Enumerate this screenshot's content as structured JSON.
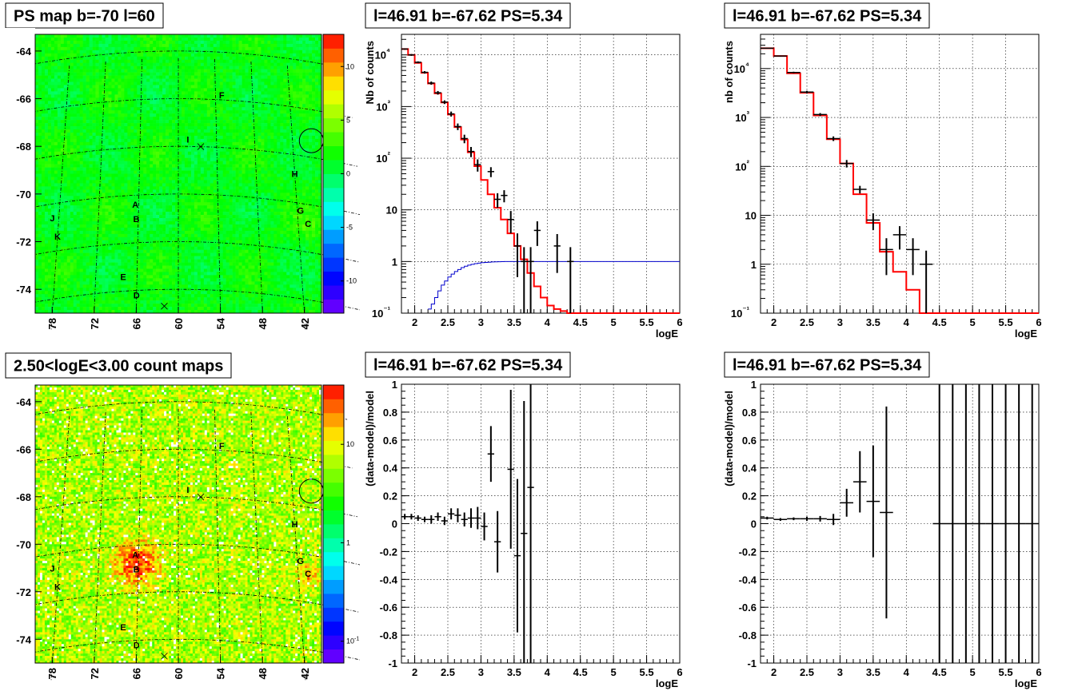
{
  "panels": [
    {
      "id": "ps-map",
      "kind": "map",
      "title": "PS map b=-70 l=60",
      "x_ticks": [
        "78",
        "72",
        "66",
        "60",
        "54",
        "48",
        "42"
      ],
      "y_ticks": [
        "-64",
        "-66",
        "-68",
        "-70",
        "-72",
        "-74"
      ],
      "colorbar_ticks": [
        "10",
        "5",
        "0",
        "-5",
        "-10"
      ],
      "colorbar_scale": "linear",
      "colorbar_range": [
        -13,
        13
      ],
      "background_level": 0.55,
      "colorbar_colors": [
        "#7a00ff",
        "#0000ff",
        "#0080ff",
        "#00ffff",
        "#00ff80",
        "#00ff00",
        "#80ff00",
        "#ffff00",
        "#ff8000",
        "#ff0000"
      ],
      "sources": [
        {
          "label": "A",
          "lon": 66.5,
          "lat": -70.4
        },
        {
          "label": "B",
          "lon": 66.3,
          "lat": -71.0
        },
        {
          "label": "C",
          "lon": 40.5,
          "lat": -70.8
        },
        {
          "label": "D",
          "lon": 66.0,
          "lat": -74.2
        },
        {
          "label": "E",
          "lon": 68.0,
          "lat": -73.4
        },
        {
          "label": "F",
          "lon": 53.0,
          "lat": -65.8
        },
        {
          "label": "G",
          "lon": 41.5,
          "lat": -70.3
        },
        {
          "label": "H",
          "lon": 42.0,
          "lat": -68.8
        },
        {
          "label": "I",
          "lon": 58.5,
          "lat": -67.7
        },
        {
          "label": "J",
          "lon": 79.0,
          "lat": -70.6
        },
        {
          "label": "K",
          "lon": 78.0,
          "lat": -71.4
        }
      ]
    },
    {
      "id": "count-map",
      "kind": "map",
      "title": "2.50<logE<3.00 count maps",
      "x_ticks": [
        "78",
        "72",
        "66",
        "60",
        "54",
        "48",
        "42"
      ],
      "y_ticks": [
        "-64",
        "-66",
        "-68",
        "-70",
        "-72",
        "-74"
      ],
      "colorbar_ticks": [
        "10",
        "1",
        "10-1"
      ],
      "colorbar_scale": "log",
      "colorbar_range": [
        0.06,
        40
      ],
      "background_level": 0.72,
      "colorbar_colors": [
        "#7a00ff",
        "#0000ff",
        "#0080ff",
        "#00ffff",
        "#00ff80",
        "#00ff00",
        "#80ff00",
        "#ffff00",
        "#ff8000",
        "#ff0000"
      ],
      "sources": [
        {
          "label": "A",
          "lon": 66.5,
          "lat": -70.4
        },
        {
          "label": "B",
          "lon": 66.3,
          "lat": -71.0
        },
        {
          "label": "C",
          "lon": 40.5,
          "lat": -70.8
        },
        {
          "label": "D",
          "lon": 66.0,
          "lat": -74.2
        },
        {
          "label": "E",
          "lon": 68.0,
          "lat": -73.4
        },
        {
          "label": "F",
          "lon": 53.0,
          "lat": -65.8
        },
        {
          "label": "G",
          "lon": 41.5,
          "lat": -70.3
        },
        {
          "label": "H",
          "lon": 42.0,
          "lat": -68.8
        },
        {
          "label": "I",
          "lon": 58.5,
          "lat": -67.7
        },
        {
          "label": "J",
          "lon": 79.0,
          "lat": -70.6
        },
        {
          "label": "K",
          "lon": 78.0,
          "lat": -71.4
        }
      ]
    }
  ],
  "chart_data": [
    {
      "id": "spectrum-fine",
      "type": "line",
      "title": "l=46.91 b=-67.62 PS=5.34",
      "xlabel": "logE",
      "ylabel": "Nb of counts",
      "xlim": [
        1.8,
        6
      ],
      "ylim": [
        0.1,
        25000
      ],
      "yscale": "log",
      "x_ticks": [
        "2",
        "2.5",
        "3",
        "3.5",
        "4",
        "4.5",
        "5",
        "5.5",
        "6"
      ],
      "y_ticks": [
        "10⁻¹",
        "1",
        "10",
        "10²",
        "10³",
        "10⁴"
      ],
      "grid": true,
      "series": [
        {
          "role": "model",
          "color": "#ff0000",
          "style": "step",
          "bin_width": 0.1,
          "x": [
            1.85,
            1.95,
            2.05,
            2.15,
            2.25,
            2.35,
            2.45,
            2.55,
            2.65,
            2.75,
            2.85,
            2.95,
            3.05,
            3.15,
            3.25,
            3.35,
            3.45,
            3.55,
            3.65,
            3.75,
            3.85,
            3.95,
            4.05,
            4.15,
            4.25,
            4.35
          ],
          "y": [
            13000,
            10000,
            7000,
            4500,
            2800,
            1800,
            1200,
            700,
            400,
            230,
            130,
            70,
            38,
            20,
            11,
            6.5,
            3.5,
            2,
            1.1,
            0.6,
            0.33,
            0.2,
            0.14,
            0.12,
            0.11,
            0.1
          ]
        },
        {
          "role": "efficiency",
          "color": "#0000cc",
          "style": "step",
          "bin_width": 0.05,
          "x": [
            2.225,
            2.275,
            2.325,
            2.375,
            2.425,
            2.475,
            2.525,
            2.575,
            2.625,
            2.675,
            2.725,
            2.775,
            2.825,
            2.875,
            2.925,
            2.975,
            3.025,
            3.075,
            3.125,
            3.175,
            3.225,
            3.275,
            3.325,
            3.375,
            3.5,
            4.0,
            5.0,
            6.0
          ],
          "y": [
            0.12,
            0.15,
            0.2,
            0.27,
            0.35,
            0.42,
            0.5,
            0.57,
            0.64,
            0.7,
            0.76,
            0.81,
            0.85,
            0.88,
            0.91,
            0.93,
            0.95,
            0.96,
            0.97,
            0.98,
            0.985,
            0.99,
            0.995,
            1.0,
            1.0,
            1.0,
            1.0,
            1.0
          ]
        },
        {
          "role": "data",
          "color": "#000000",
          "style": "errorbar",
          "xerr": 0.05,
          "points": [
            [
              1.85,
              13000,
              400
            ],
            [
              1.95,
              10000,
              400
            ],
            [
              2.05,
              7200,
              300
            ],
            [
              2.15,
              4600,
              250
            ],
            [
              2.25,
              2850,
              200
            ],
            [
              2.35,
              1850,
              150
            ],
            [
              2.45,
              1220,
              100
            ],
            [
              2.55,
              720,
              80
            ],
            [
              2.65,
              410,
              60
            ],
            [
              2.75,
              240,
              45
            ],
            [
              2.85,
              135,
              30
            ],
            [
              2.95,
              75,
              20
            ],
            [
              3.15,
              55,
              12
            ],
            [
              3.25,
              16,
              5
            ],
            [
              3.35,
              19,
              5
            ],
            [
              3.45,
              6.5,
              3
            ],
            [
              3.55,
              2,
              1.5
            ],
            [
              3.65,
              1,
              0.9
            ],
            [
              3.75,
              1,
              0.9
            ],
            [
              3.85,
              4,
              2
            ],
            [
              4.15,
              2,
              1.4
            ],
            [
              4.35,
              1,
              0.9
            ]
          ]
        }
      ]
    },
    {
      "id": "spectrum-coarse",
      "type": "line",
      "title": "l=46.91 b=-67.62 PS=5.34",
      "xlabel": "logE",
      "ylabel": "nb of counts",
      "xlim": [
        1.8,
        6
      ],
      "ylim": [
        0.1,
        50000
      ],
      "yscale": "log",
      "x_ticks": [
        "2",
        "2.5",
        "3",
        "3.5",
        "4",
        "4.5",
        "5",
        "5.5",
        "6"
      ],
      "y_ticks": [
        "10⁻¹",
        "1",
        "10",
        "10²",
        "10³",
        "10⁴"
      ],
      "grid": true,
      "series": [
        {
          "role": "model",
          "color": "#ff0000",
          "style": "step",
          "bin_width": 0.2,
          "x": [
            1.9,
            2.1,
            2.3,
            2.5,
            2.7,
            2.9,
            3.1,
            3.3,
            3.5,
            3.7,
            3.9,
            4.1,
            4.3
          ],
          "y": [
            26000,
            18000,
            8000,
            3200,
            1100,
            360,
            115,
            27,
            7,
            1.8,
            0.7,
            0.3,
            0.1
          ]
        },
        {
          "role": "data",
          "color": "#000000",
          "style": "errorbar",
          "xerr": 0.1,
          "points": [
            [
              1.9,
              26000,
              500
            ],
            [
              2.1,
              18000,
              400
            ],
            [
              2.3,
              8300,
              300
            ],
            [
              2.5,
              3300,
              200
            ],
            [
              2.7,
              1150,
              80
            ],
            [
              2.9,
              370,
              40
            ],
            [
              3.1,
              115,
              20
            ],
            [
              3.3,
              34,
              6
            ],
            [
              3.5,
              8,
              3
            ],
            [
              3.7,
              2,
              1.4
            ],
            [
              3.9,
              4,
              2
            ],
            [
              4.1,
              2,
              1.4
            ],
            [
              4.3,
              1,
              0.9
            ]
          ]
        }
      ]
    },
    {
      "id": "residual-fine",
      "type": "scatter",
      "title": "l=46.91 b=-67.62 PS=5.34",
      "xlabel": "logE",
      "ylabel": "(data-model)/model",
      "xlim": [
        1.8,
        6
      ],
      "ylim": [
        -1,
        1
      ],
      "x_ticks": [
        "2",
        "2.5",
        "3",
        "3.5",
        "4",
        "4.5",
        "5",
        "5.5",
        "6"
      ],
      "y_ticks": [
        "-1",
        "-0.8",
        "-0.6",
        "-0.4",
        "-0.2",
        "0",
        "0.2",
        "0.4",
        "0.6",
        "0.8",
        "1"
      ],
      "grid": true,
      "series": [
        {
          "role": "data",
          "color": "#000000",
          "style": "errorbar",
          "xerr": 0.05,
          "points": [
            [
              1.85,
              0.05,
              0.02
            ],
            [
              1.95,
              0.05,
              0.02
            ],
            [
              2.05,
              0.04,
              0.02
            ],
            [
              2.15,
              0.03,
              0.02
            ],
            [
              2.25,
              0.03,
              0.03
            ],
            [
              2.35,
              0.05,
              0.03
            ],
            [
              2.45,
              0.02,
              0.03
            ],
            [
              2.55,
              0.07,
              0.04
            ],
            [
              2.65,
              0.06,
              0.05
            ],
            [
              2.75,
              0.03,
              0.05
            ],
            [
              2.85,
              0.04,
              0.07
            ],
            [
              2.95,
              0.04,
              0.08
            ],
            [
              3.05,
              -0.02,
              0.1
            ],
            [
              3.15,
              0.5,
              0.2
            ],
            [
              3.25,
              -0.13,
              0.22
            ],
            [
              3.45,
              0.39,
              0.57
            ],
            [
              3.55,
              -0.23,
              0.55
            ],
            [
              3.65,
              -0.07,
              0.95
            ],
            [
              3.75,
              0.26,
              1.3
            ]
          ]
        }
      ]
    },
    {
      "id": "residual-coarse",
      "type": "scatter",
      "title": "l=46.91 b=-67.62 PS=5.34",
      "xlabel": "logE",
      "ylabel": "(data-model)/model",
      "xlim": [
        1.8,
        6
      ],
      "ylim": [
        -1,
        1
      ],
      "x_ticks": [
        "2",
        "2.5",
        "3",
        "3.5",
        "4",
        "4.5",
        "5",
        "5.5",
        "6"
      ],
      "y_ticks": [
        "-1",
        "-0.8",
        "-0.6",
        "-0.4",
        "-0.2",
        "0",
        "0.2",
        "0.4",
        "0.6",
        "0.8",
        "1"
      ],
      "grid": true,
      "series": [
        {
          "role": "data",
          "color": "#000000",
          "style": "errorbar",
          "xerr": 0.1,
          "points": [
            [
              1.9,
              0.04,
              0.01
            ],
            [
              2.1,
              0.03,
              0.01
            ],
            [
              2.3,
              0.035,
              0.01
            ],
            [
              2.5,
              0.035,
              0.015
            ],
            [
              2.7,
              0.035,
              0.02
            ],
            [
              2.9,
              0.03,
              0.04
            ],
            [
              3.1,
              0.15,
              0.1
            ],
            [
              3.3,
              0.3,
              0.22
            ],
            [
              3.5,
              0.16,
              0.4
            ],
            [
              3.7,
              0.08,
              0.76
            ],
            [
              4.5,
              0,
              1.5
            ],
            [
              4.7,
              0,
              1.5
            ],
            [
              4.9,
              0,
              1.5
            ],
            [
              5.1,
              0,
              1.5
            ],
            [
              5.3,
              0,
              1.5
            ],
            [
              5.5,
              0,
              1.5
            ],
            [
              5.7,
              0,
              1.5
            ],
            [
              5.9,
              0,
              1.5
            ]
          ]
        }
      ]
    }
  ]
}
